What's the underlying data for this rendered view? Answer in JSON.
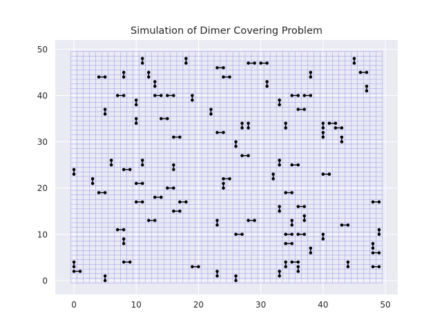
{
  "chart_data": {
    "type": "scatter",
    "title": "Simulation of Dimer Covering Problem",
    "xlabel": "",
    "ylabel": "",
    "xlim": [
      -3,
      52
    ],
    "ylim": [
      -3,
      52
    ],
    "xticks": [
      "0",
      "10",
      "20",
      "30",
      "40",
      "50"
    ],
    "yticks": [
      "0",
      "10",
      "20",
      "30",
      "40",
      "50"
    ],
    "grid": true,
    "lattice": {
      "min": 0,
      "max": 49
    },
    "colors": {
      "background": "#eaeaf2",
      "grid": "#ffffff",
      "lattice": "#3333ff",
      "dimer": "#000000"
    },
    "dimers": [
      [
        0,
        3,
        0,
        4
      ],
      [
        0,
        23,
        0,
        24
      ],
      [
        0,
        2,
        1,
        2
      ],
      [
        3,
        21,
        3,
        22
      ],
      [
        4,
        19,
        5,
        19
      ],
      [
        5,
        0,
        5,
        1
      ],
      [
        5,
        36,
        5,
        37
      ],
      [
        4,
        44,
        5,
        44
      ],
      [
        6,
        25,
        6,
        26
      ],
      [
        7,
        11,
        8,
        11
      ],
      [
        7,
        40,
        8,
        40
      ],
      [
        8,
        8,
        8,
        9
      ],
      [
        8,
        44,
        8,
        45
      ],
      [
        8,
        24,
        9,
        24
      ],
      [
        8,
        4,
        9,
        4
      ],
      [
        10,
        17,
        11,
        17
      ],
      [
        10,
        21,
        11,
        21
      ],
      [
        10,
        34,
        10,
        35
      ],
      [
        10,
        38,
        10,
        39
      ],
      [
        11,
        25,
        11,
        26
      ],
      [
        11,
        47,
        11,
        48
      ],
      [
        12,
        13,
        13,
        13
      ],
      [
        12,
        44,
        12,
        45
      ],
      [
        13,
        18,
        14,
        18
      ],
      [
        13,
        42,
        13,
        43
      ],
      [
        13,
        40,
        14,
        40
      ],
      [
        14,
        35,
        15,
        35
      ],
      [
        15,
        20,
        16,
        20
      ],
      [
        15,
        40,
        16,
        40
      ],
      [
        16,
        15,
        17,
        15
      ],
      [
        16,
        24,
        16,
        25
      ],
      [
        16,
        31,
        17,
        31
      ],
      [
        17,
        17,
        18,
        17
      ],
      [
        18,
        47,
        18,
        48
      ],
      [
        19,
        3,
        20,
        3
      ],
      [
        19,
        39,
        19,
        40
      ],
      [
        22,
        36,
        22,
        37
      ],
      [
        23,
        1,
        23,
        2
      ],
      [
        23,
        12,
        23,
        13
      ],
      [
        23,
        32,
        24,
        32
      ],
      [
        23,
        46,
        24,
        46
      ],
      [
        24,
        20,
        24,
        21
      ],
      [
        24,
        22,
        25,
        22
      ],
      [
        24,
        44,
        25,
        44
      ],
      [
        26,
        0,
        26,
        1
      ],
      [
        26,
        10,
        27,
        10
      ],
      [
        26,
        29,
        26,
        30
      ],
      [
        27,
        27,
        28,
        27
      ],
      [
        27,
        33,
        27,
        34
      ],
      [
        28,
        33,
        28,
        34
      ],
      [
        28,
        13,
        29,
        13
      ],
      [
        28,
        47,
        29,
        47
      ],
      [
        30,
        47,
        31,
        47
      ],
      [
        31,
        42,
        31,
        43
      ],
      [
        32,
        22,
        32,
        23
      ],
      [
        33,
        1,
        33,
        2
      ],
      [
        33,
        15,
        33,
        16
      ],
      [
        33,
        25,
        33,
        26
      ],
      [
        33,
        38,
        33,
        39
      ],
      [
        34,
        3,
        34,
        4
      ],
      [
        34,
        8,
        35,
        8
      ],
      [
        34,
        10,
        35,
        10
      ],
      [
        34,
        19,
        35,
        19
      ],
      [
        34,
        33,
        34,
        34
      ],
      [
        35,
        12,
        35,
        13
      ],
      [
        35,
        4,
        36,
        4
      ],
      [
        35,
        25,
        36,
        25
      ],
      [
        35,
        40,
        36,
        40
      ],
      [
        36,
        2,
        36,
        3
      ],
      [
        36,
        10,
        37,
        10
      ],
      [
        36,
        16,
        37,
        16
      ],
      [
        36,
        37,
        37,
        37
      ],
      [
        37,
        13,
        37,
        14
      ],
      [
        37,
        40,
        38,
        40
      ],
      [
        38,
        6,
        38,
        7
      ],
      [
        38,
        44,
        38,
        45
      ],
      [
        40,
        9,
        40,
        10
      ],
      [
        40,
        31,
        40,
        32
      ],
      [
        40,
        33,
        40,
        34
      ],
      [
        40,
        23,
        41,
        23
      ],
      [
        41,
        34,
        42,
        34
      ],
      [
        42,
        33,
        43,
        33
      ],
      [
        43,
        30,
        43,
        31
      ],
      [
        43,
        12,
        44,
        12
      ],
      [
        44,
        3,
        44,
        4
      ],
      [
        45,
        47,
        45,
        48
      ],
      [
        46,
        45,
        47,
        45
      ],
      [
        47,
        41,
        47,
        42
      ],
      [
        48,
        6,
        49,
        6
      ],
      [
        48,
        7,
        48,
        8
      ],
      [
        48,
        3,
        49,
        3
      ],
      [
        48,
        17,
        49,
        17
      ],
      [
        49,
        10,
        49,
        11
      ]
    ]
  }
}
